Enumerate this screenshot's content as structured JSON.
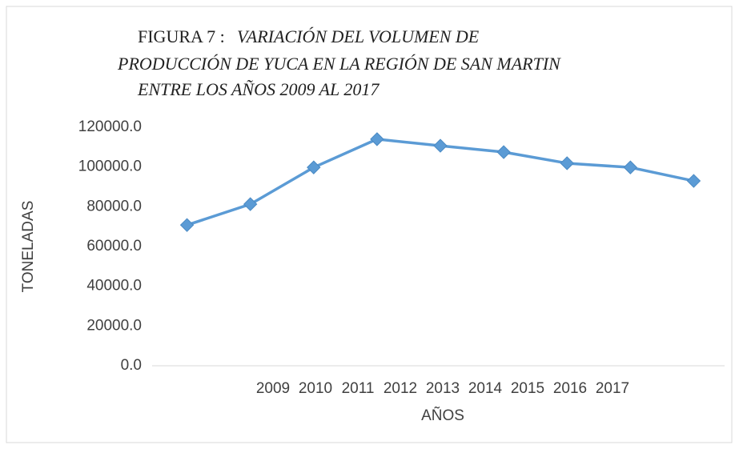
{
  "chart_data": {
    "type": "line",
    "title_prefix": "FIGURA 7 :",
    "title_lines": [
      "VARIACIÓN DEL VOLUMEN DE",
      "PRODUCCIÓN DE YUCA EN LA REGIÓN DE SAN MARTIN",
      "ENTRE LOS AÑOS 2009 AL 2017"
    ],
    "x_label": "AÑOS",
    "y_label": "TONELADAS",
    "categories": [
      "2009",
      "2010",
      "2011",
      "2012",
      "2013",
      "2014",
      "2015",
      "2016",
      "2017"
    ],
    "series": [
      {
        "name": "TONELADAS",
        "color": "#5b9bd5",
        "values": [
          70800,
          81300,
          99800,
          114000,
          110700,
          107500,
          101900,
          99800,
          93000
        ]
      }
    ],
    "ylim": [
      0,
      120000
    ],
    "yticks": [
      {
        "value": 0,
        "label": "0.0"
      },
      {
        "value": 20000,
        "label": "20000.0"
      },
      {
        "value": 40000,
        "label": "40000.0"
      },
      {
        "value": 60000,
        "label": "60000.0"
      },
      {
        "value": 80000,
        "label": "80000.0"
      },
      {
        "value": 100000,
        "label": "100000.0"
      },
      {
        "value": 120000,
        "label": "120000.0"
      }
    ],
    "grid": false
  }
}
